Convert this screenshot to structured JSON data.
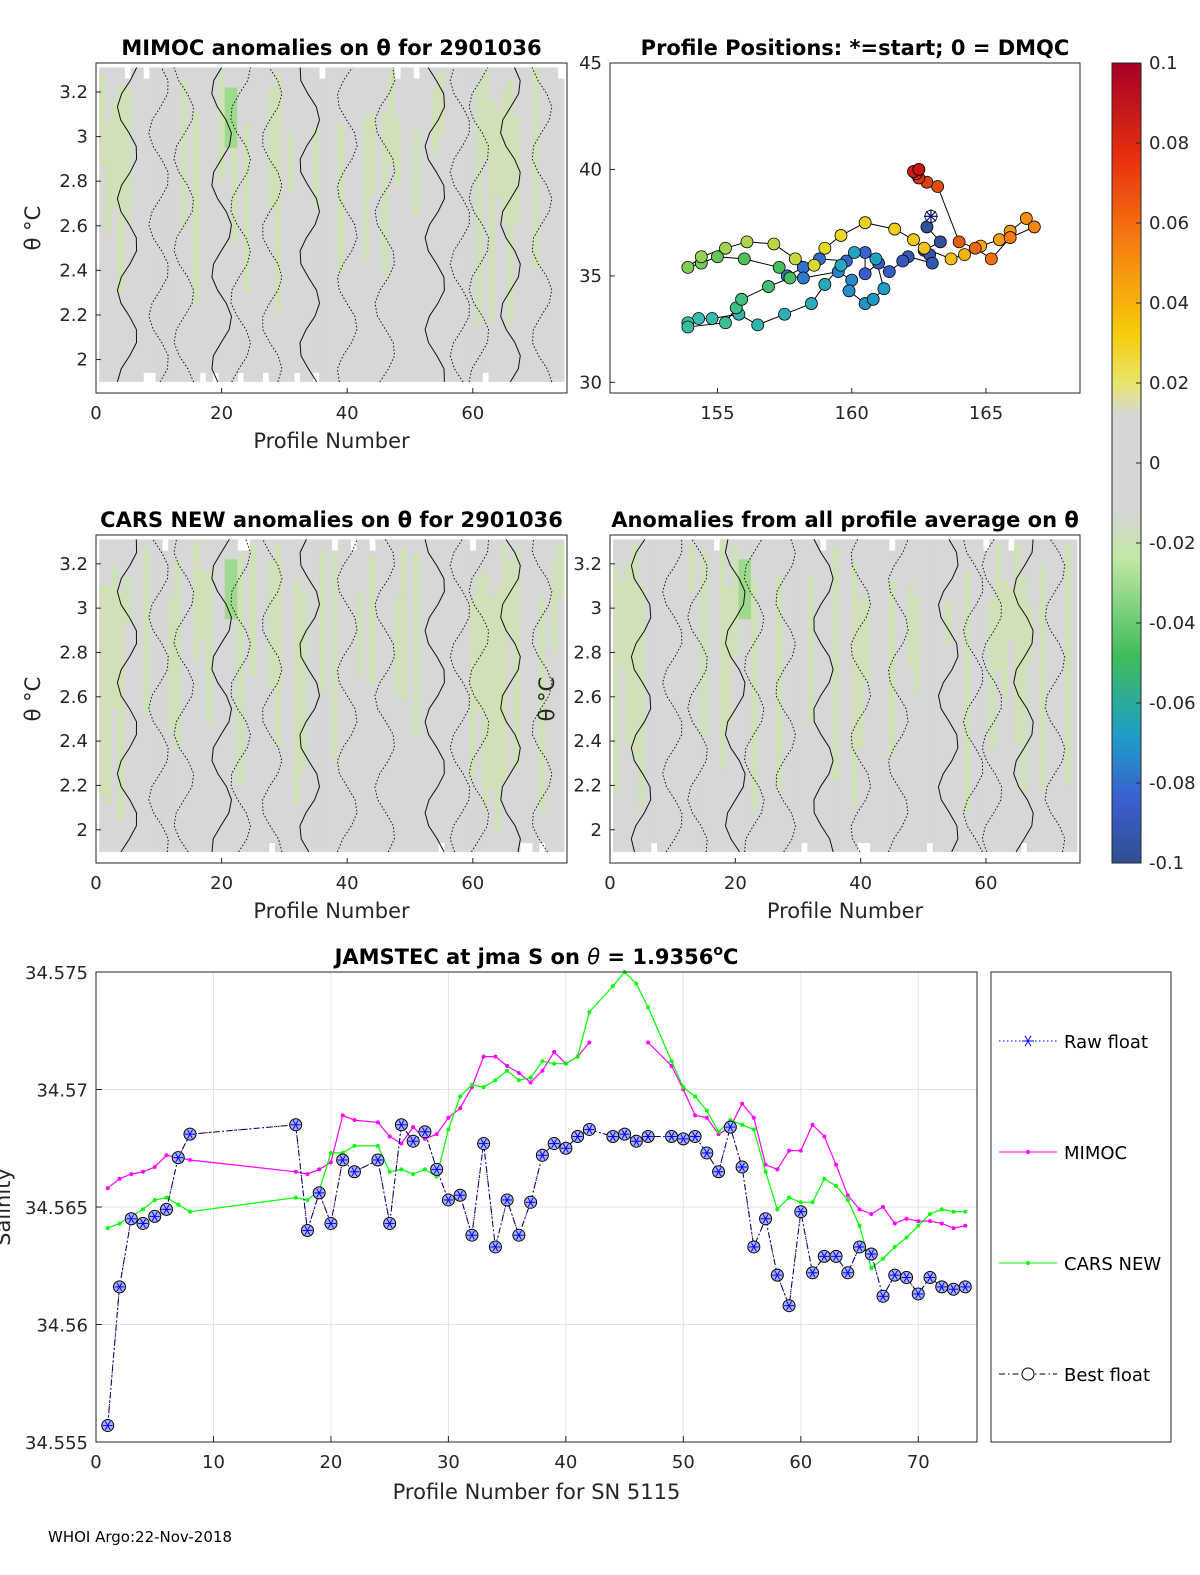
{
  "footer": "WHOI Argo:22-Nov-2018",
  "chart_data": [
    {
      "id": "mimoc",
      "type": "heatmap",
      "title": "MIMOC anomalies on θ  for 2901036",
      "xlabel": "Profile Number",
      "ylabel": "θ °C",
      "xlim": [
        0,
        75
      ],
      "ylim": [
        1.85,
        3.33
      ],
      "xticks": [
        "0",
        "20",
        "40",
        "60"
      ],
      "yticks": [
        "2",
        "2.2",
        "2.4",
        "2.6",
        "2.8",
        "3",
        "3.2"
      ]
    },
    {
      "id": "positions",
      "type": "scatter",
      "title": "Profile Positions: *=start; 0 = DMQC",
      "xlim": [
        151,
        168.5
      ],
      "ylim": [
        29.5,
        45
      ],
      "xticks": [
        "155",
        "160",
        "165"
      ],
      "yticks": [
        "30",
        "35",
        "40",
        "45"
      ],
      "lon": [
        162.95,
        162.8,
        163.3,
        162.7,
        162.9,
        163.0,
        162.1,
        161.9,
        161.4,
        161.0,
        160.5,
        160.5,
        159.8,
        158.8,
        158.2,
        157.6,
        158.2,
        159.5,
        160.0,
        159.9,
        160.5,
        160.8,
        161.2,
        160.9,
        160.1,
        159.6,
        159.0,
        158.5,
        157.5,
        156.5,
        155.8,
        154.8,
        154.3,
        153.9,
        153.9,
        155.3,
        155.7,
        155.9,
        156.9,
        157.7,
        157.3,
        156.0,
        155.0,
        154.4,
        153.9,
        154.4,
        155.3,
        156.1,
        157.1,
        157.9,
        158.6,
        159.0,
        159.6,
        160.5,
        161.6,
        162.3,
        162.7,
        163.7,
        164.2,
        164.8,
        165.5,
        165.9,
        166.5,
        166.8,
        165.9,
        165.2,
        164.6,
        164.0,
        163.2,
        162.8,
        162.5,
        162.4,
        162.3,
        162.5
      ],
      "lat": [
        37.8,
        37.3,
        36.6,
        36.2,
        36.0,
        35.6,
        35.9,
        35.7,
        35.2,
        35.6,
        35.1,
        36.1,
        35.7,
        35.8,
        35.4,
        35.0,
        34.9,
        35.2,
        34.8,
        34.3,
        33.7,
        33.9,
        34.4,
        35.8,
        36.1,
        35.5,
        34.6,
        33.7,
        33.2,
        32.7,
        33.2,
        33.0,
        33.0,
        32.8,
        32.6,
        32.8,
        33.5,
        33.9,
        34.5,
        34.9,
        35.4,
        35.8,
        35.9,
        35.6,
        35.4,
        35.9,
        36.3,
        36.6,
        36.5,
        35.8,
        35.5,
        36.3,
        36.9,
        37.5,
        37.2,
        36.7,
        36.3,
        35.8,
        36.0,
        36.4,
        36.7,
        37.1,
        37.7,
        37.3,
        36.8,
        35.8,
        36.3,
        36.6,
        39.2,
        39.4,
        39.6,
        39.8,
        39.9,
        40.0
      ]
    },
    {
      "id": "colorbar",
      "type": "heatmap",
      "clim": [
        -0.1,
        0.1
      ],
      "ticks": [
        "0.1",
        "0.08",
        "0.06",
        "0.04",
        "0.02",
        "0",
        "-0.02",
        "-0.04",
        "-0.06",
        "-0.08",
        "-0.1"
      ]
    },
    {
      "id": "cars",
      "type": "heatmap",
      "title": "CARS NEW anomalies on θ for 2901036",
      "xlabel": "Profile Number",
      "ylabel": "θ °C",
      "xlim": [
        0,
        75
      ],
      "ylim": [
        1.85,
        3.33
      ],
      "xticks": [
        "0",
        "20",
        "40",
        "60"
      ],
      "yticks": [
        "2",
        "2.2",
        "2.4",
        "2.6",
        "2.8",
        "3",
        "3.2"
      ]
    },
    {
      "id": "allavg",
      "type": "heatmap",
      "title": "Anomalies from all profile average on θ",
      "xlabel": "Profile Number",
      "ylabel": "θ °C",
      "xlim": [
        0,
        75
      ],
      "ylim": [
        1.85,
        3.33
      ],
      "xticks": [
        "0",
        "20",
        "40",
        "60"
      ],
      "yticks": [
        "2",
        "2.2",
        "2.4",
        "2.6",
        "2.8",
        "3",
        "3.2"
      ]
    },
    {
      "id": "salinity",
      "type": "line",
      "title_prefix": "JAMSTEC at jma S on ",
      "title_theta": "θ",
      "title_suffix": " = 1.9356",
      "title_sup": "o",
      "title_unit": "C",
      "xlabel": "Profile Number for SN 5115",
      "ylabel": "Salinity",
      "xlim": [
        0,
        75
      ],
      "ylim": [
        34.555,
        34.575
      ],
      "xticks": [
        "0",
        "10",
        "20",
        "30",
        "40",
        "50",
        "60",
        "70"
      ],
      "yticks": [
        "34.555",
        "34.56",
        "34.565",
        "34.57",
        "34.575"
      ],
      "x": [
        1,
        2,
        3,
        4,
        5,
        6,
        7,
        8,
        17,
        18,
        19,
        20,
        21,
        22,
        24,
        25,
        26,
        27,
        28,
        29,
        30,
        31,
        32,
        33,
        34,
        35,
        36,
        37,
        38,
        39,
        40,
        41,
        42,
        44,
        45,
        46,
        47,
        49,
        50,
        51,
        52,
        53,
        54,
        55,
        56,
        57,
        58,
        59,
        60,
        61,
        62,
        63,
        64,
        65,
        66,
        67,
        68,
        69,
        70,
        71,
        72,
        73,
        74
      ],
      "series": [
        {
          "name": "Raw float",
          "color": "#0000ff",
          "values": [
            34.5557,
            34.5616,
            34.5645,
            34.5643,
            34.5646,
            34.5649,
            34.5671,
            34.5681,
            34.5685,
            34.564,
            34.5656,
            34.5643,
            34.567,
            34.5665,
            34.567,
            34.5643,
            34.5685,
            34.5678,
            34.5682,
            34.5666,
            34.5653,
            34.5655,
            34.5638,
            34.5677,
            34.5633,
            34.5653,
            34.5638,
            34.5652,
            34.5672,
            34.5677,
            34.5675,
            34.568,
            34.5683,
            34.568,
            34.5681,
            34.5678,
            34.568,
            34.568,
            34.5679,
            34.568,
            34.5673,
            34.5665,
            34.5684,
            34.5667,
            34.5633,
            34.5645,
            34.5621,
            34.5608,
            34.5648,
            34.5622,
            34.5629,
            34.5629,
            34.5622,
            34.5633,
            34.563,
            34.5612,
            34.5621,
            34.562,
            34.5613,
            34.562,
            34.5616,
            34.5615,
            34.5616
          ]
        },
        {
          "name": "MIMOC",
          "color": "#ff00ff",
          "values": [
            34.5658,
            34.5662,
            34.5664,
            34.5665,
            34.5667,
            34.5672,
            34.5671,
            34.567,
            34.5665,
            34.5664,
            34.5666,
            34.5669,
            34.5689,
            34.5687,
            34.5686,
            34.568,
            34.5677,
            34.5684,
            34.5679,
            34.5681,
            34.5688,
            34.5692,
            34.5701,
            34.5714,
            34.5714,
            34.571,
            34.5707,
            34.5703,
            34.5708,
            34.5716,
            34.5711,
            34.5714,
            34.572,
            null,
            null,
            null,
            34.572,
            34.571,
            34.57,
            34.5689,
            34.5688,
            34.5681,
            34.5684,
            34.5694,
            34.5688,
            34.5668,
            34.5666,
            34.5674,
            34.5674,
            34.5685,
            34.568,
            34.5668,
            34.5655,
            34.5649,
            34.5647,
            34.565,
            34.5643,
            34.5645,
            34.5644,
            34.5644,
            34.5643,
            34.5641,
            34.5642
          ]
        },
        {
          "name": "CARS NEW",
          "color": "#00ff00",
          "values": [
            34.5641,
            34.5643,
            34.5646,
            34.5649,
            34.5653,
            34.5654,
            34.5651,
            34.5648,
            34.5654,
            34.5653,
            34.5657,
            34.5673,
            34.5673,
            34.5676,
            34.5676,
            34.5665,
            34.5666,
            34.5664,
            34.5666,
            34.5663,
            34.5683,
            34.5697,
            34.5702,
            34.5701,
            34.5704,
            34.5708,
            34.5704,
            34.5705,
            34.5712,
            34.5711,
            34.5711,
            34.5714,
            34.5733,
            34.5744,
            34.575,
            34.5745,
            34.5735,
            34.5712,
            34.5701,
            34.5697,
            34.5691,
            34.5682,
            34.5687,
            34.5685,
            34.5683,
            34.5665,
            34.5649,
            34.5654,
            34.5652,
            34.5652,
            34.5662,
            34.5659,
            34.5653,
            34.5642,
            34.5624,
            34.5628,
            34.5633,
            34.5637,
            34.5642,
            34.5647,
            34.5649,
            34.5648,
            34.5648
          ]
        },
        {
          "name": "Best float",
          "color": "#000000"
        }
      ]
    }
  ]
}
